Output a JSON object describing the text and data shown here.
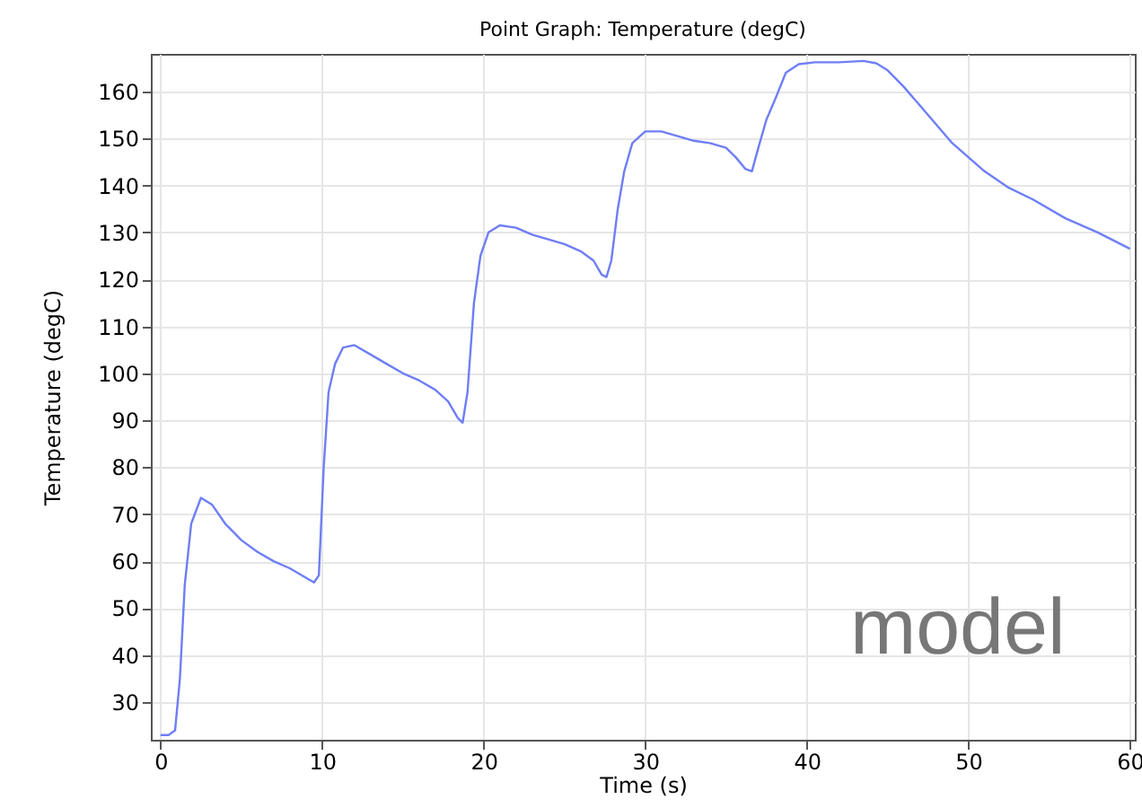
{
  "chart_data": {
    "type": "line",
    "title": "Point Graph: Temperature (degC)",
    "xlabel": "Time (s)",
    "ylabel": "Temperature (degC)",
    "annotations": [
      "model"
    ],
    "x": [
      0,
      0.5,
      0.9,
      1.2,
      1.5,
      1.9,
      2.5,
      3.2,
      4,
      5,
      6,
      7,
      8,
      9,
      9.5,
      9.8,
      10.1,
      10.4,
      10.8,
      11.3,
      12,
      13,
      14,
      15,
      16,
      17,
      17.8,
      18.4,
      18.7,
      19,
      19.4,
      19.8,
      20.3,
      21,
      22,
      23,
      24,
      25,
      26,
      26.8,
      27.3,
      27.6,
      27.9,
      28.3,
      28.7,
      29.2,
      30,
      31,
      32,
      33,
      34,
      35,
      35.6,
      36.2,
      36.6,
      37,
      37.5,
      38,
      38.7,
      39.5,
      40.5,
      42,
      43.5,
      44.3,
      45,
      46,
      47,
      48,
      49,
      50,
      51,
      52.5,
      54,
      56,
      58,
      60
    ],
    "series": [
      {
        "color": "#6e7ef5",
        "values": [
          23,
          23,
          24,
          35,
          55,
          68,
          73.5,
          72,
          68,
          64.5,
          62,
          60,
          58.5,
          56.5,
          55.5,
          57,
          80,
          96,
          102,
          105.5,
          106,
          104,
          102,
          100,
          98.5,
          96.5,
          94,
          90.5,
          89.5,
          96,
          115,
          125,
          130,
          131.5,
          131,
          129.5,
          128.5,
          127.5,
          126,
          124,
          121,
          120.5,
          124,
          135,
          143,
          149,
          151.5,
          151.5,
          150.5,
          149.5,
          149,
          148,
          146,
          143.5,
          143,
          148,
          154,
          158,
          164,
          165.8,
          166.2,
          166.2,
          166.5,
          166,
          164.5,
          161,
          157,
          153,
          149,
          146,
          143,
          139.5,
          137,
          133,
          130,
          126.5
        ]
      }
    ],
    "xlim": [
      -0.6,
      60.3
    ],
    "xticks": [
      0,
      10,
      20,
      30,
      40,
      50,
      60
    ],
    "ylim": [
      22,
      168
    ],
    "yticks": [
      30,
      40,
      50,
      60,
      70,
      80,
      90,
      100,
      110,
      120,
      130,
      140,
      150,
      160
    ],
    "grid": true
  }
}
